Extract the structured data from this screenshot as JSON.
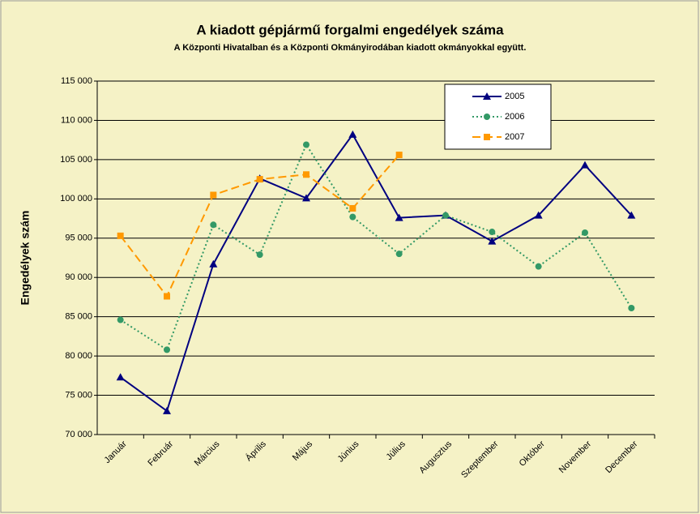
{
  "chart_data": {
    "type": "line",
    "title": "A  kiadott gépjármű forgalmi engedélyek száma",
    "subtitle": "A  Központi Hivatalban és a Központi Okmányirodában kiadott okmányokkal együtt.",
    "y_label": "Engedélyek szám",
    "categories": [
      "Január",
      "Február",
      "Március",
      "Április",
      "Május",
      "Június",
      "Július",
      "Augusztus",
      "Szeptember",
      "Október",
      "November",
      "December"
    ],
    "series": [
      {
        "name": "2005",
        "color": "#000080",
        "line_style": "solid",
        "marker": "triangle",
        "values": [
          77300,
          73000,
          91700,
          102600,
          100100,
          108200,
          97600,
          97900,
          94600,
          97900,
          104300,
          97900
        ]
      },
      {
        "name": "2006",
        "color": "#339966",
        "line_style": "dotted",
        "marker": "circle",
        "values": [
          84600,
          80800,
          96700,
          92900,
          106900,
          97700,
          93000,
          97900,
          95800,
          91400,
          95700,
          86100
        ]
      },
      {
        "name": "2007",
        "color": "#FF9900",
        "line_style": "dashed",
        "marker": "square",
        "values": [
          95300,
          87600,
          100500,
          102500,
          103100,
          98800,
          105600,
          null,
          null,
          null,
          null,
          null
        ]
      }
    ],
    "ylim": [
      70000,
      115000
    ],
    "yticks": [
      {
        "value": 70000,
        "label": "70 000"
      },
      {
        "value": 75000,
        "label": "75 000"
      },
      {
        "value": 80000,
        "label": "80 000"
      },
      {
        "value": 85000,
        "label": "85 000"
      },
      {
        "value": 90000,
        "label": "90 000"
      },
      {
        "value": 95000,
        "label": "95 000"
      },
      {
        "value": 100000,
        "label": "100 000"
      },
      {
        "value": 105000,
        "label": "105 000"
      },
      {
        "value": 110000,
        "label": "110 000"
      },
      {
        "value": 115000,
        "label": "115 000"
      }
    ],
    "grid": true,
    "legend": "upper-right"
  }
}
